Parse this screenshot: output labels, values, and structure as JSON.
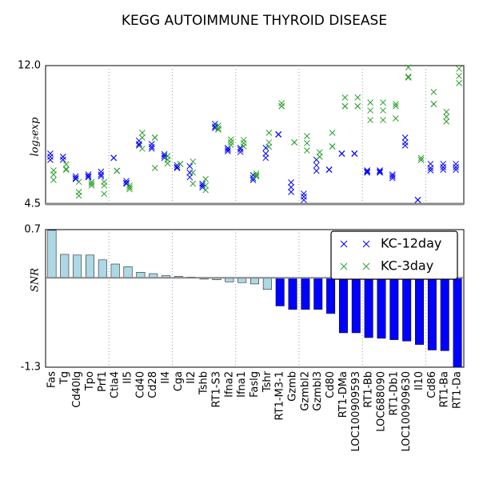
{
  "chart_data": [
    {
      "type": "scatter",
      "title": "KEGG AUTOIMMUNE THYROID DISEASE",
      "y_label": "log₂exp",
      "ylim": [
        4.5,
        12
      ],
      "yticks": [
        {
          "value": 12,
          "label": "12.0"
        },
        4.5
      ],
      "legend": "upper right",
      "series": [
        {
          "name": "KC-12day",
          "color": "#0000ff",
          "values": [
            [
              7.23,
              7.06,
              6.89
            ],
            [
              7.06,
              7.06,
              6.9
            ],
            [
              6.0,
              5.9,
              5.85
            ],
            [
              6.1,
              6.0,
              5.95
            ],
            [
              6.25,
              6.1,
              6.0
            ],
            [
              7.0,
              7.0,
              7.0
            ],
            [
              5.75,
              5.65,
              5.6
            ],
            [
              7.93,
              7.75,
              7.67
            ],
            [
              7.75,
              7.6,
              7.5
            ],
            [
              7.2,
              7.1,
              7.0
            ],
            [
              6.6,
              6.5,
              6.45
            ],
            [
              6.55,
              6.2,
              5.95
            ],
            [
              5.6,
              5.5,
              5.4
            ],
            [
              8.84,
              8.7,
              8.62
            ],
            [
              7.54,
              7.45,
              7.36
            ],
            [
              7.54,
              7.45,
              7.32
            ],
            [
              6.06,
              5.9,
              5.8
            ],
            [
              7.54,
              7.23,
              7.0
            ],
            [
              8.27,
              8.27,
              8.27
            ],
            [
              5.67,
              5.41,
              5.15
            ],
            [
              5.06,
              4.9,
              4.72
            ],
            [
              6.9,
              6.6,
              6.3
            ],
            [
              6.36,
              6.36,
              6.36
            ],
            [
              7.23,
              7.23,
              7.23
            ],
            [
              7.23,
              7.23,
              7.23
            ],
            [
              6.32,
              6.25,
              6.2
            ],
            [
              6.32,
              6.25,
              6.2
            ],
            [
              6.1,
              6.0,
              5.9
            ],
            [
              8.1,
              7.84,
              7.67
            ],
            [
              4.72,
              4.72,
              4.72
            ],
            [
              6.67,
              6.45,
              6.32
            ],
            [
              6.67,
              6.5,
              6.36
            ],
            [
              6.67,
              6.5,
              6.36
            ]
          ]
        },
        {
          "name": "KC-3day",
          "color": "#2ca02c",
          "values": [
            [
              6.32,
              6.1,
              5.8
            ],
            [
              6.65,
              6.4,
              6.35
            ],
            [
              5.7,
              5.15,
              4.95
            ],
            [
              5.7,
              5.6,
              5.5
            ],
            [
              5.7,
              5.5,
              5.05
            ],
            [
              6.3,
              6.3,
              6.3
            ],
            [
              5.5,
              5.4,
              5.3
            ],
            [
              8.36,
              8.1,
              7.5
            ],
            [
              8.1,
              8.1,
              6.45
            ],
            [
              7.1,
              6.9,
              6.7
            ],
            [
              6.67,
              6.67,
              6.67
            ],
            [
              6.8,
              6.2,
              5.6
            ],
            [
              5.85,
              5.5,
              5.25
            ],
            [
              8.75,
              8.6,
              8.53
            ],
            [
              8.0,
              7.85,
              7.7
            ],
            [
              7.97,
              7.8,
              7.62
            ],
            [
              6.15,
              6.05,
              6.0
            ],
            [
              8.36,
              7.84,
              7.6
            ],
            [
              9.96,
              9.8,
              9.8
            ],
            [
              7.84,
              7.84,
              7.84
            ],
            [
              8.18,
              7.8,
              7.4
            ],
            [
              7.3,
              7.06,
              7.06
            ],
            [
              8.36,
              7.62,
              7.62
            ],
            [
              10.27,
              9.8,
              9.8
            ],
            [
              10.27,
              9.8,
              9.8
            ],
            [
              10.0,
              9.57,
              9.05
            ],
            [
              10.0,
              9.57,
              9.05
            ],
            [
              9.92,
              9.8,
              9.14
            ],
            [
              11.9,
              11.4,
              11.35
            ],
            [
              7.0,
              6.89,
              6.89
            ],
            [
              10.57,
              9.92,
              9.92
            ],
            [
              9.49,
              9.23,
              8.97
            ],
            [
              11.83,
              11.44,
              11.05
            ]
          ]
        }
      ]
    },
    {
      "type": "bar",
      "y_label": "SNR",
      "ylim": [
        -1.3,
        0.7
      ],
      "yticks": [
        0.7,
        -1.3
      ],
      "categories": [
        "Fas",
        "Tg",
        "Cd40lg",
        "Tpo",
        "Prf1",
        "Ctla4",
        "Il5",
        "Cd40",
        "Cd28",
        "Il4",
        "Cga",
        "Il2",
        "Tshb",
        "RT1-S3",
        "Ifna2",
        "Ifna1",
        "Faslg",
        "Tshr",
        "RT1-M3-1",
        "Gzmb",
        "Gzmbl2",
        "Gzmbl3",
        "Cd80",
        "RT1-DMa",
        "LOC100909593",
        "RT1-Bb",
        "LOC688090",
        "RT1-Db1",
        "LOC100909630",
        "Il10",
        "Cd86",
        "RT1-Ba",
        "RT1-Da"
      ],
      "values": [
        0.69,
        0.34,
        0.33,
        0.33,
        0.26,
        0.2,
        0.16,
        0.08,
        0.06,
        0.03,
        0.02,
        0.01,
        -0.02,
        -0.03,
        -0.06,
        -0.07,
        -0.09,
        -0.17,
        -0.41,
        -0.46,
        -0.46,
        -0.46,
        -0.52,
        -0.8,
        -0.8,
        -0.87,
        -0.88,
        -0.9,
        -0.92,
        -0.97,
        -1.05,
        -1.06,
        -1.3
      ],
      "colors": [
        "#add8e6",
        "#add8e6",
        "#add8e6",
        "#add8e6",
        "#add8e6",
        "#add8e6",
        "#add8e6",
        "#add8e6",
        "#add8e6",
        "#add8e6",
        "#add8e6",
        "#add8e6",
        "#add8e6",
        "#add8e6",
        "#add8e6",
        "#add8e6",
        "#add8e6",
        "#add8e6",
        "#0000ff",
        "#0000ff",
        "#0000ff",
        "#0000ff",
        "#0000ff",
        "#0000ff",
        "#0000ff",
        "#0000ff",
        "#0000ff",
        "#0000ff",
        "#0000ff",
        "#0000ff",
        "#0000ff",
        "#0000ff",
        "#0000ff"
      ]
    }
  ]
}
